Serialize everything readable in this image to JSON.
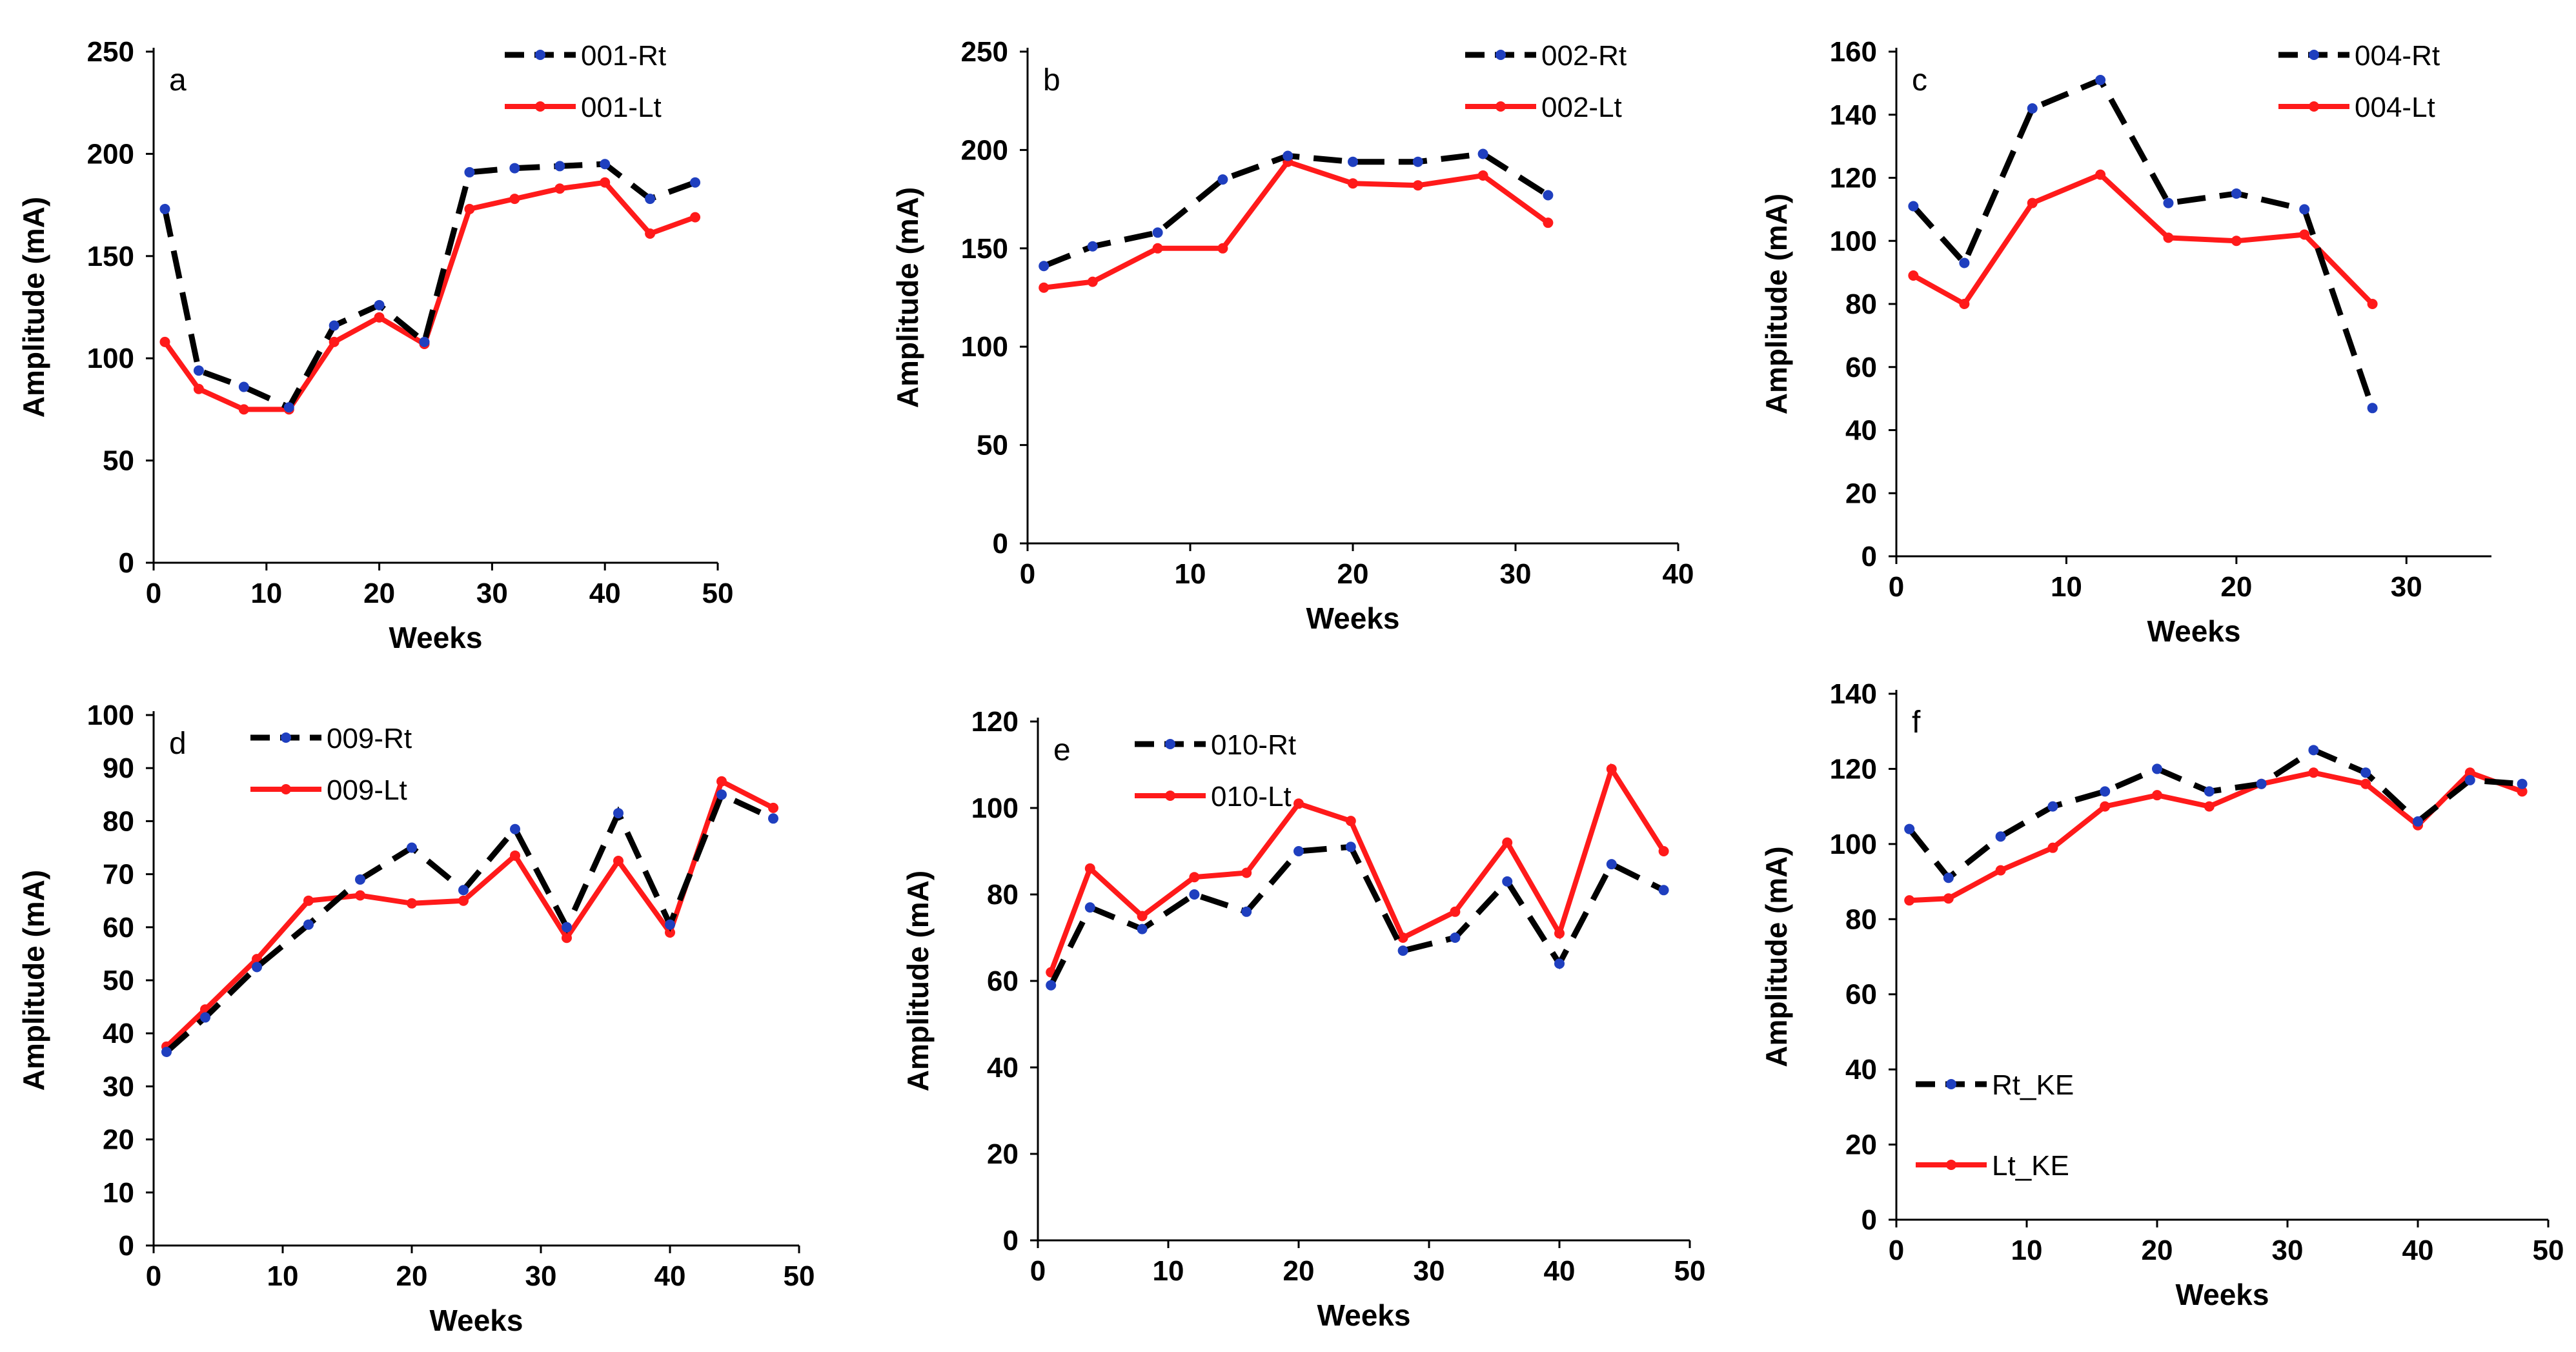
{
  "chart_data": [
    {
      "type": "line",
      "panel_label": "a",
      "xlabel": "Weeks",
      "ylabel": "Amplitude (mA)",
      "xlim": [
        0,
        50
      ],
      "ylim": [
        0,
        250
      ],
      "xticks": [
        "0",
        "10",
        "20",
        "30",
        "40",
        "50"
      ],
      "yticks": [
        "0",
        "50",
        "100",
        "150",
        "200",
        "250"
      ],
      "legend": "top-right",
      "series": [
        {
          "name": "001-Rt",
          "style": "dashed",
          "color": "#000000",
          "marker_color": "#1f3fbf",
          "x": [
            1,
            4,
            8,
            12,
            16,
            20,
            24,
            28,
            32,
            36,
            40,
            44,
            48
          ],
          "values": [
            173,
            94,
            86,
            76,
            116,
            126,
            108,
            191,
            193,
            194,
            195,
            178,
            186
          ]
        },
        {
          "name": "001-Lt",
          "style": "solid",
          "color": "#ff1a1a",
          "marker_color": "#ff1a1a",
          "x": [
            1,
            4,
            8,
            12,
            16,
            20,
            24,
            28,
            32,
            36,
            40,
            44,
            48
          ],
          "values": [
            108,
            85,
            75,
            75,
            108,
            120,
            107,
            173,
            178,
            183,
            186,
            161,
            169
          ]
        }
      ]
    },
    {
      "type": "line",
      "panel_label": "b",
      "xlabel": "Weeks",
      "ylabel": "Amplitude (mA)",
      "xlim": [
        0,
        40
      ],
      "ylim": [
        0,
        250
      ],
      "xticks": [
        "0",
        "10",
        "20",
        "30",
        "40"
      ],
      "yticks": [
        "0",
        "50",
        "100",
        "150",
        "200",
        "250"
      ],
      "legend": "top-right",
      "series": [
        {
          "name": "002-Rt",
          "style": "dashed",
          "color": "#000000",
          "marker_color": "#1f3fbf",
          "x": [
            1,
            4,
            8,
            12,
            16,
            20,
            24,
            28,
            32
          ],
          "values": [
            141,
            151,
            158,
            185,
            197,
            194,
            194,
            198,
            177
          ]
        },
        {
          "name": "002-Lt",
          "style": "solid",
          "color": "#ff1a1a",
          "marker_color": "#ff1a1a",
          "x": [
            1,
            4,
            8,
            12,
            16,
            20,
            24,
            28,
            32
          ],
          "values": [
            130,
            133,
            150,
            150,
            194,
            183,
            182,
            187,
            163
          ]
        }
      ]
    },
    {
      "type": "line",
      "panel_label": "c",
      "xlabel": "Weeks",
      "ylabel": "Amplitude (mA)",
      "xlim": [
        0,
        35
      ],
      "ylim": [
        0,
        160
      ],
      "xticks": [
        "0",
        "10",
        "20",
        "30"
      ],
      "yticks": [
        "0",
        "20",
        "40",
        "60",
        "80",
        "100",
        "120",
        "140",
        "160"
      ],
      "legend": "top-right",
      "series": [
        {
          "name": "004-Rt",
          "style": "dashed",
          "color": "#000000",
          "marker_color": "#1f3fbf",
          "x": [
            1,
            4,
            8,
            12,
            16,
            20,
            24,
            28
          ],
          "values": [
            111,
            93,
            142,
            151,
            112,
            115,
            110,
            47
          ]
        },
        {
          "name": "004-Lt",
          "style": "solid",
          "color": "#ff1a1a",
          "marker_color": "#ff1a1a",
          "x": [
            1,
            4,
            8,
            12,
            16,
            20,
            24,
            28
          ],
          "values": [
            89,
            80,
            112,
            121,
            101,
            100,
            102,
            80
          ]
        }
      ]
    },
    {
      "type": "line",
      "panel_label": "d",
      "xlabel": "Weeks",
      "ylabel": "Amplitude (mA)",
      "xlim": [
        0,
        50
      ],
      "ylim": [
        0,
        100
      ],
      "xticks": [
        "0",
        "10",
        "20",
        "30",
        "40",
        "50"
      ],
      "yticks": [
        "0",
        "10",
        "20",
        "30",
        "40",
        "50",
        "60",
        "70",
        "80",
        "90",
        "100"
      ],
      "legend": "top-left",
      "series": [
        {
          "name": "009-Rt",
          "style": "dashed",
          "color": "#000000",
          "marker_color": "#1f3fbf",
          "x": [
            1,
            4,
            8,
            12,
            16,
            20,
            24,
            28,
            32,
            36,
            40,
            44,
            48
          ],
          "values": [
            36.5,
            43,
            52.5,
            60.5,
            69,
            75,
            67,
            78.5,
            60,
            81.5,
            60.5,
            85,
            80.5
          ]
        },
        {
          "name": "009-Lt",
          "style": "solid",
          "color": "#ff1a1a",
          "marker_color": "#ff1a1a",
          "x": [
            1,
            4,
            8,
            12,
            16,
            20,
            24,
            28,
            32,
            36,
            40,
            44,
            48
          ],
          "values": [
            37.5,
            44.5,
            54,
            65,
            66,
            64.5,
            65,
            73.5,
            58,
            72.5,
            59,
            87.5,
            82.5
          ]
        }
      ]
    },
    {
      "type": "line",
      "panel_label": "e",
      "xlabel": "Weeks",
      "ylabel": "Amplitude (mA)",
      "xlim": [
        0,
        50
      ],
      "ylim": [
        0,
        120
      ],
      "xticks": [
        "0",
        "10",
        "20",
        "30",
        "40",
        "50"
      ],
      "yticks": [
        "0",
        "20",
        "40",
        "60",
        "80",
        "100",
        "120"
      ],
      "legend": "top-left",
      "series": [
        {
          "name": "010-Rt",
          "style": "dashed",
          "color": "#000000",
          "marker_color": "#1f3fbf",
          "x": [
            1,
            4,
            8,
            12,
            16,
            20,
            24,
            28,
            32,
            36,
            40,
            44,
            48
          ],
          "values": [
            59,
            77,
            72,
            80,
            76,
            90,
            91,
            67,
            70,
            83,
            64,
            87,
            81
          ]
        },
        {
          "name": "010-Lt",
          "style": "solid",
          "color": "#ff1a1a",
          "marker_color": "#ff1a1a",
          "x": [
            1,
            4,
            8,
            12,
            16,
            20,
            24,
            28,
            32,
            36,
            40,
            44,
            48
          ],
          "values": [
            62,
            86,
            75,
            84,
            85,
            101,
            97,
            70,
            76,
            92,
            71,
            109,
            90
          ]
        }
      ]
    },
    {
      "type": "line",
      "panel_label": "f",
      "xlabel": "Weeks",
      "ylabel": "Amplitude (mA)",
      "xlim": [
        0,
        50
      ],
      "ylim": [
        0,
        140
      ],
      "xticks": [
        "0",
        "10",
        "20",
        "30",
        "40",
        "50"
      ],
      "yticks": [
        "0",
        "20",
        "40",
        "60",
        "80",
        "100",
        "120",
        "140"
      ],
      "legend": "bottom-left",
      "series": [
        {
          "name": "Rt_KE",
          "style": "dashed",
          "color": "#000000",
          "marker_color": "#1f3fbf",
          "x": [
            1,
            4,
            8,
            12,
            16,
            20,
            24,
            28,
            32,
            36,
            40,
            44,
            48
          ],
          "values": [
            104,
            91,
            102,
            110,
            114,
            120,
            114,
            116,
            125,
            119,
            106,
            117,
            116
          ]
        },
        {
          "name": "Lt_KE",
          "style": "solid",
          "color": "#ff1a1a",
          "marker_color": "#ff1a1a",
          "x": [
            1,
            4,
            8,
            12,
            16,
            20,
            24,
            28,
            32,
            36,
            40,
            44,
            48
          ],
          "values": [
            85,
            85.5,
            93,
            99,
            110,
            113,
            110,
            116,
            119,
            116,
            105,
            119,
            114
          ]
        }
      ]
    }
  ]
}
